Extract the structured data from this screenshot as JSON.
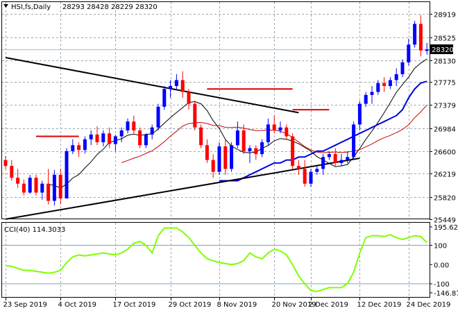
{
  "header": {
    "title": "HSI,fs,Daily",
    "ohlc": "28293 28428 28229 28320"
  },
  "price_axis": {
    "labels": [
      "28919",
      "28525",
      "28130",
      "27775",
      "27379",
      "26984",
      "26600",
      "26219",
      "25820",
      "25449"
    ],
    "current": "28320"
  },
  "cci": {
    "label": "CCI(40) 114.3033",
    "labels": [
      "195.6284",
      "100",
      "0.00",
      "-100",
      "-146.876"
    ]
  },
  "time_axis": {
    "labels": [
      "23 Sep 2019",
      "4 Oct 2019",
      "17 Oct 2019",
      "29 Oct 2019",
      "8 Nov 2019",
      "20 Nov 2019",
      "2 Dec 2019",
      "12 Dec 2019",
      "24 Dec 2019"
    ]
  },
  "colors": {
    "bull": "#0000ff",
    "bear": "#ff0000",
    "cci": "#7fff00",
    "ma_fast": "#000000",
    "ma_mid": "#cc0000",
    "ma_slow": "#0000dd",
    "sr": "#dd0000",
    "trend": "#000000"
  },
  "chart_data": {
    "type": "candlestick",
    "title": "HSI,fs,Daily",
    "ylim": [
      25449,
      28919
    ],
    "dates": [
      "2019-09-23",
      "2019-09-24",
      "2019-09-25",
      "2019-09-26",
      "2019-09-27",
      "2019-09-30",
      "2019-10-02",
      "2019-10-03",
      "2019-10-04",
      "2019-10-07",
      "2019-10-08",
      "2019-10-09",
      "2019-10-10",
      "2019-10-11",
      "2019-10-14",
      "2019-10-15",
      "2019-10-16",
      "2019-10-17",
      "2019-10-18",
      "2019-10-21",
      "2019-10-22",
      "2019-10-23",
      "2019-10-24",
      "2019-10-25",
      "2019-10-28",
      "2019-10-29",
      "2019-10-30",
      "2019-10-31",
      "2019-11-01",
      "2019-11-04",
      "2019-11-05",
      "2019-11-06",
      "2019-11-07",
      "2019-11-08",
      "2019-11-11",
      "2019-11-12",
      "2019-11-13",
      "2019-11-14",
      "2019-11-15",
      "2019-11-18",
      "2019-11-19",
      "2019-11-20",
      "2019-11-21",
      "2019-11-22",
      "2019-11-25",
      "2019-11-26",
      "2019-11-27",
      "2019-11-28",
      "2019-11-29",
      "2019-12-02",
      "2019-12-03",
      "2019-12-04",
      "2019-12-05",
      "2019-12-06",
      "2019-12-09",
      "2019-12-10",
      "2019-12-11",
      "2019-12-12",
      "2019-12-13",
      "2019-12-16",
      "2019-12-17",
      "2019-12-18",
      "2019-12-19",
      "2019-12-20",
      "2019-12-23",
      "2019-12-24",
      "2019-12-26",
      "2019-12-27",
      "2019-12-30",
      "2019-12-31"
    ],
    "ohlc": [
      [
        26450,
        26520,
        26300,
        26350
      ],
      [
        26350,
        26450,
        26100,
        26150
      ],
      [
        26150,
        26300,
        25980,
        26050
      ],
      [
        26050,
        26120,
        25850,
        25900
      ],
      [
        25900,
        26200,
        25880,
        26150
      ],
      [
        26150,
        26200,
        25850,
        25900
      ],
      [
        25900,
        26100,
        25780,
        26050
      ],
      [
        26050,
        26300,
        25700,
        25760
      ],
      [
        25760,
        26280,
        25680,
        26200
      ],
      [
        26200,
        26300,
        25700,
        25800
      ],
      [
        25800,
        26650,
        25800,
        26600
      ],
      [
        26600,
        26800,
        26550,
        26700
      ],
      [
        26700,
        26750,
        26500,
        26620
      ],
      [
        26620,
        26850,
        26560,
        26800
      ],
      [
        26800,
        26950,
        26700,
        26880
      ],
      [
        26880,
        27020,
        26700,
        26750
      ],
      [
        26750,
        26950,
        26680,
        26900
      ],
      [
        26900,
        27000,
        26650,
        26720
      ],
      [
        26720,
        26880,
        26600,
        26850
      ],
      [
        26850,
        27000,
        26750,
        26950
      ],
      [
        26950,
        27150,
        26900,
        27100
      ],
      [
        27100,
        27200,
        26900,
        26950
      ],
      [
        26950,
        27000,
        26650,
        26700
      ],
      [
        26700,
        26900,
        26650,
        26880
      ],
      [
        26880,
        27050,
        26800,
        27000
      ],
      [
        27000,
        27400,
        26950,
        27350
      ],
      [
        27350,
        27700,
        27300,
        27650
      ],
      [
        27650,
        27800,
        27500,
        27700
      ],
      [
        27700,
        27900,
        27650,
        27800
      ],
      [
        27800,
        27950,
        27500,
        27600
      ],
      [
        27600,
        27650,
        27300,
        27400
      ],
      [
        27400,
        27450,
        26950,
        27000
      ],
      [
        27000,
        27050,
        26650,
        26700
      ],
      [
        26700,
        26800,
        26400,
        26450
      ],
      [
        26450,
        26550,
        26150,
        26250
      ],
      [
        26250,
        26750,
        26200,
        26680
      ],
      [
        26680,
        26800,
        26200,
        26300
      ],
      [
        26300,
        26750,
        26250,
        26700
      ],
      [
        26700,
        27100,
        26650,
        26950
      ],
      [
        26950,
        27050,
        26550,
        26600
      ],
      [
        26600,
        26700,
        26400,
        26650
      ],
      [
        26650,
        26700,
        26450,
        26550
      ],
      [
        26550,
        26800,
        26500,
        26750
      ],
      [
        26750,
        27150,
        26700,
        27050
      ],
      [
        27050,
        27200,
        26900,
        26950
      ],
      [
        26950,
        27100,
        26900,
        27000
      ],
      [
        27000,
        27050,
        26800,
        26850
      ],
      [
        26850,
        26900,
        26300,
        26350
      ],
      [
        26350,
        26450,
        26200,
        26300
      ],
      [
        26300,
        26450,
        26000,
        26050
      ],
      [
        26050,
        26300,
        26000,
        26250
      ],
      [
        26250,
        26350,
        26200,
        26300
      ],
      [
        26300,
        26550,
        26200,
        26500
      ],
      [
        26500,
        26600,
        26450,
        26550
      ],
      [
        26550,
        26650,
        26350,
        26400
      ],
      [
        26400,
        26550,
        26350,
        26450
      ],
      [
        26450,
        26600,
        26400,
        26500
      ],
      [
        26500,
        27100,
        26450,
        27050
      ],
      [
        27050,
        27450,
        26950,
        27400
      ],
      [
        27400,
        27600,
        27350,
        27550
      ],
      [
        27550,
        27700,
        27400,
        27600
      ],
      [
        27600,
        27800,
        27550,
        27750
      ],
      [
        27750,
        27850,
        27600,
        27700
      ],
      [
        27700,
        27850,
        27650,
        27800
      ],
      [
        27800,
        28000,
        27700,
        27900
      ],
      [
        27900,
        28150,
        27850,
        28100
      ],
      [
        28100,
        28500,
        28050,
        28400
      ],
      [
        28400,
        28800,
        28350,
        28750
      ],
      [
        28750,
        28900,
        28200,
        28300
      ],
      [
        28293,
        28428,
        28229,
        28320
      ]
    ],
    "indicators": {
      "ma_slow": [
        null,
        null,
        null,
        null,
        null,
        null,
        null,
        null,
        null,
        null,
        null,
        null,
        null,
        null,
        null,
        null,
        null,
        null,
        null,
        null,
        null,
        null,
        null,
        null,
        null,
        null,
        null,
        null,
        null,
        null,
        null,
        null,
        null,
        null,
        null,
        26100,
        26100,
        26100,
        26100,
        26150,
        26200,
        26250,
        26300,
        26350,
        26400,
        26400,
        26450,
        26450,
        26500,
        26500,
        26550,
        26600,
        26600,
        26650,
        26700,
        26750,
        26800,
        26850,
        26900,
        26950,
        27000,
        27050,
        27100,
        27150,
        27200,
        27300,
        27500,
        27650,
        27750,
        27780
      ],
      "cci": [
        -5,
        -10,
        -20,
        -30,
        -30,
        -35,
        -40,
        -45,
        -40,
        -30,
        10,
        40,
        50,
        45,
        50,
        55,
        60,
        55,
        50,
        60,
        80,
        110,
        120,
        100,
        60,
        150,
        190,
        190,
        190,
        170,
        140,
        100,
        60,
        30,
        20,
        10,
        5,
        0,
        5,
        20,
        60,
        40,
        30,
        60,
        80,
        70,
        50,
        0,
        -60,
        -100,
        -135,
        -140,
        -130,
        -120,
        -120,
        -120,
        -100,
        -40,
        60,
        140,
        150,
        150,
        145,
        155,
        140,
        130,
        140,
        150,
        145,
        114.3
      ]
    },
    "resistance_segments": [
      {
        "from": "2019-09-30",
        "to": "2019-10-10",
        "value": 26850
      },
      {
        "from": "2019-11-08",
        "to": "2019-11-28",
        "value": 27650
      },
      {
        "from": "2019-11-28",
        "to": "2019-12-06",
        "value": 27300
      }
    ],
    "trend_lines": [
      {
        "from": [
          "2019-09-23",
          28180
        ],
        "to": [
          "2019-11-29",
          27250
        ]
      },
      {
        "from": [
          "2019-09-23",
          25450
        ],
        "to": [
          "2019-12-13",
          26480
        ]
      }
    ]
  }
}
